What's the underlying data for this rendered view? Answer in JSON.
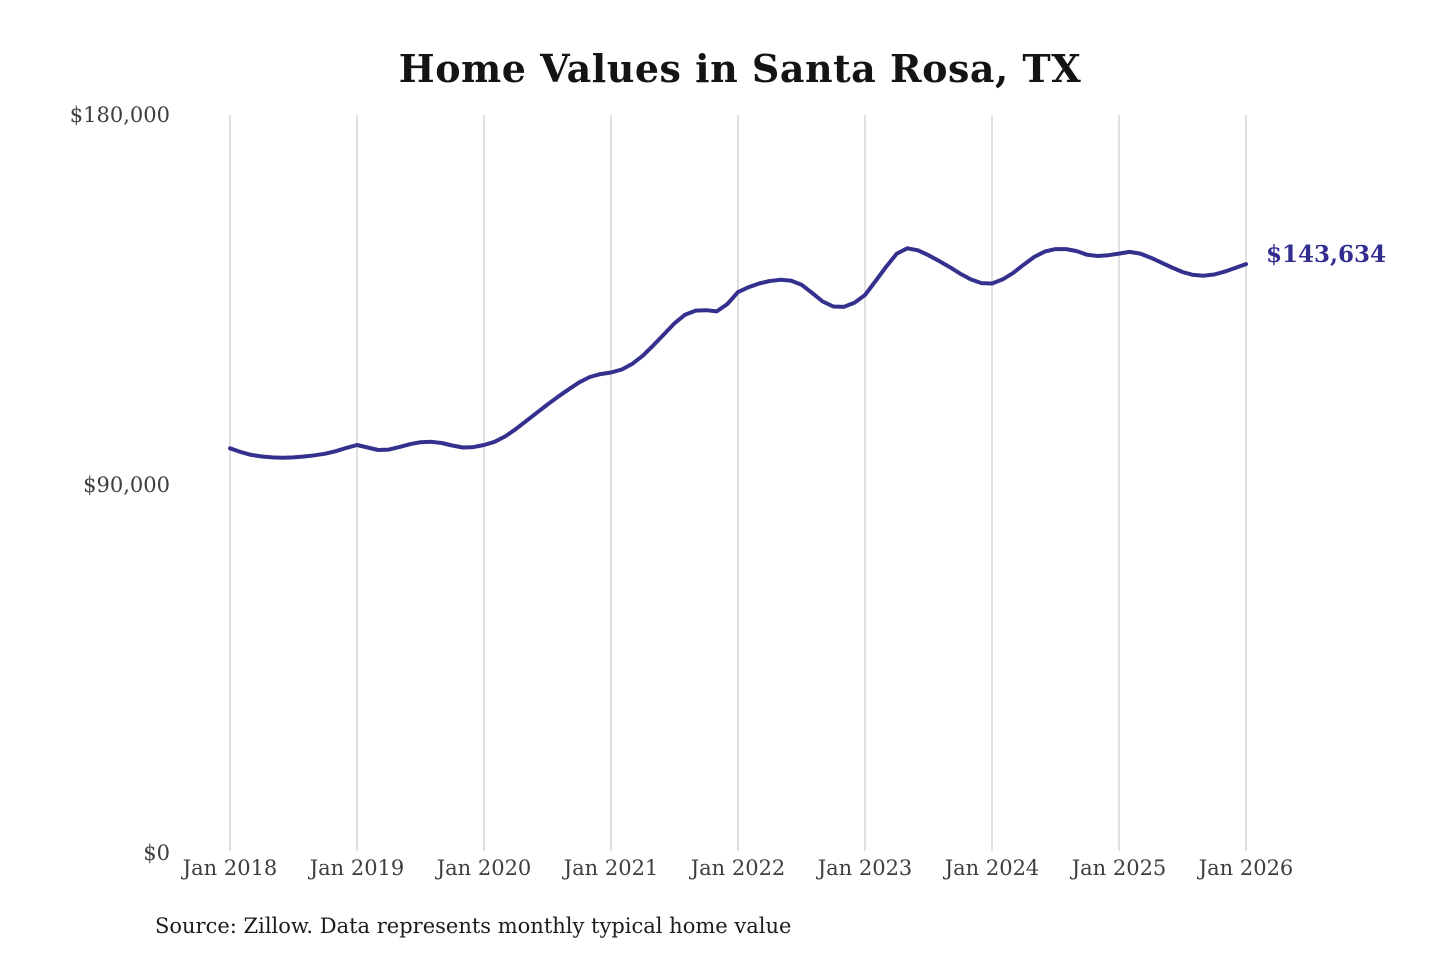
{
  "title": "Home Values in Santa Rosa, TX",
  "source_note": "Source: Zillow. Data represents monthly typical home value",
  "colors": {
    "line": "#34308e",
    "end_label": "#322e8f",
    "grid": "#cbcbcb",
    "axis_text": "#3e3e3e",
    "title_text": "#141414",
    "background": "#ffffff"
  },
  "chart_data": {
    "type": "line",
    "title": "Home Values in Santa Rosa, TX",
    "xlabel": "",
    "ylabel": "",
    "ylim": [
      0,
      180000
    ],
    "y_tick_labels": [
      "$0",
      "$90,000",
      "$180,000"
    ],
    "x_tick_labels": [
      "Jan 2018",
      "Jan 2019",
      "Jan 2020",
      "Jan 2021",
      "Jan 2022",
      "Jan 2023",
      "Jan 2024",
      "Jan 2025",
      "Jan 2026"
    ],
    "x_range": {
      "start": "Jan 2018",
      "end": "Jan 2026",
      "frequency": "monthly"
    },
    "grid": "vertical-only",
    "legend": "none",
    "end_annotation": {
      "text": "$143,634",
      "value": 143634
    },
    "series": [
      {
        "name": "Typical home value (USD)",
        "values": [
          98700,
          97800,
          97100,
          96700,
          96500,
          96400,
          96500,
          96700,
          97000,
          97400,
          98000,
          98800,
          99500,
          98900,
          98300,
          98400,
          99000,
          99700,
          100200,
          100300,
          100000,
          99400,
          98900,
          99000,
          99500,
          100300,
          101600,
          103400,
          105400,
          107400,
          109400,
          111300,
          113100,
          114800,
          116100,
          116800,
          117200,
          117900,
          119300,
          121300,
          123800,
          126500,
          129200,
          131300,
          132300,
          132400,
          132100,
          133900,
          136800,
          138000,
          138900,
          139500,
          139800,
          139600,
          138600,
          136600,
          134500,
          133300,
          133200,
          134200,
          136100,
          139500,
          143000,
          146200,
          147500,
          147000,
          145800,
          144400,
          142900,
          141300,
          139900,
          139000,
          138900,
          139900,
          141500,
          143500,
          145400,
          146700,
          147300,
          147300,
          146800,
          145900,
          145600,
          145800,
          146200,
          146600,
          146200,
          145200,
          144000,
          142800,
          141700,
          141000,
          140800,
          141100,
          141800,
          142700,
          143634
        ]
      }
    ]
  }
}
